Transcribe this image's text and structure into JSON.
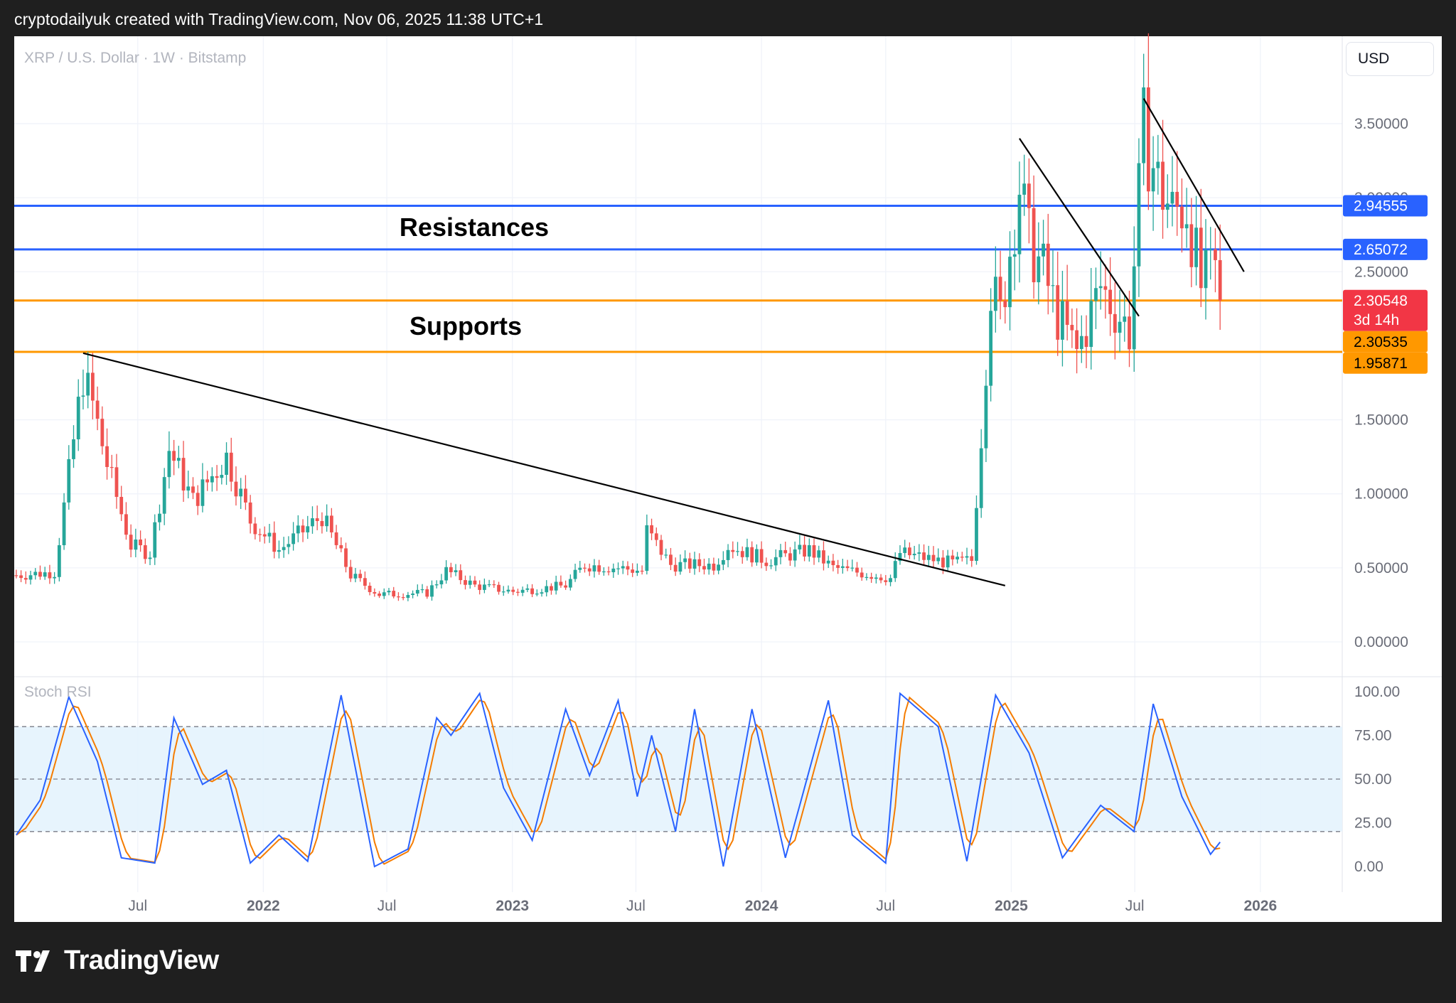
{
  "header": {
    "attribution": "cryptodailyuk created with TradingView.com, Nov 06, 2025 11:38 UTC+1"
  },
  "chart": {
    "symbol_label": "XRP / U.S. Dollar · 1W · Bitstamp",
    "currency_button": "USD"
  },
  "brand": {
    "name": "TradingView"
  },
  "colors": {
    "up": "#26a69a",
    "down": "#ef5350",
    "resistance": "#2962ff",
    "support": "#ff9800",
    "stoch_k": "#2962ff",
    "stoch_d": "#f57c00",
    "band_fill": "#e3f2fd",
    "last_price": "#f23645"
  },
  "chart_data": [
    {
      "type": "candlestick",
      "title": "XRP / U.S. Dollar · 1W · Bitstamp",
      "interval": "1W",
      "exchange": "Bitstamp",
      "ylim": [
        0,
        3.8
      ],
      "y_ticks": [
        "3.50000",
        "3.00000",
        "2.50000",
        "1.50000",
        "1.00000",
        "0.50000",
        "0.00000"
      ],
      "x_ticks": [
        "Jul",
        "2022",
        "Jul",
        "2023",
        "Jul",
        "2024",
        "Jul",
        "2025",
        "Jul",
        "2026"
      ],
      "price_path": [
        {
          "date": "2021-01-04",
          "price": 0.45
        },
        {
          "date": "2021-03-01",
          "price": 0.47
        },
        {
          "date": "2021-04-12",
          "price": 1.8
        },
        {
          "date": "2021-04-26",
          "price": 1.6
        },
        {
          "date": "2021-05-17",
          "price": 1.2
        },
        {
          "date": "2021-06-21",
          "price": 0.65
        },
        {
          "date": "2021-07-19",
          "price": 0.6
        },
        {
          "date": "2021-08-16",
          "price": 1.3
        },
        {
          "date": "2021-09-20",
          "price": 0.95
        },
        {
          "date": "2021-11-08",
          "price": 1.25
        },
        {
          "date": "2021-12-13",
          "price": 0.82
        },
        {
          "date": "2022-01-24",
          "price": 0.62
        },
        {
          "date": "2022-03-28",
          "price": 0.85
        },
        {
          "date": "2022-05-09",
          "price": 0.45
        },
        {
          "date": "2022-06-20",
          "price": 0.32
        },
        {
          "date": "2022-08-29",
          "price": 0.33
        },
        {
          "date": "2022-09-26",
          "price": 0.48
        },
        {
          "date": "2022-11-07",
          "price": 0.38
        },
        {
          "date": "2023-01-02",
          "price": 0.34
        },
        {
          "date": "2023-03-20",
          "price": 0.38
        },
        {
          "date": "2023-04-17",
          "price": 0.52
        },
        {
          "date": "2023-06-05",
          "price": 0.5
        },
        {
          "date": "2023-07-10",
          "price": 0.48
        },
        {
          "date": "2023-07-17",
          "price": 0.75
        },
        {
          "date": "2023-08-21",
          "price": 0.52
        },
        {
          "date": "2023-10-23",
          "price": 0.52
        },
        {
          "date": "2023-11-13",
          "price": 0.65
        },
        {
          "date": "2024-01-08",
          "price": 0.55
        },
        {
          "date": "2024-03-11",
          "price": 0.62
        },
        {
          "date": "2024-04-15",
          "price": 0.5
        },
        {
          "date": "2024-07-08",
          "price": 0.43
        },
        {
          "date": "2024-07-22",
          "price": 0.6
        },
        {
          "date": "2024-10-07",
          "price": 0.53
        },
        {
          "date": "2024-11-04",
          "price": 0.55
        },
        {
          "date": "2024-11-18",
          "price": 1.4
        },
        {
          "date": "2024-12-02",
          "price": 2.4
        },
        {
          "date": "2024-12-16",
          "price": 2.2
        },
        {
          "date": "2025-01-13",
          "price": 3.1
        },
        {
          "date": "2025-01-27",
          "price": 2.7
        },
        {
          "date": "2025-02-17",
          "price": 2.5
        },
        {
          "date": "2025-03-10",
          "price": 2.2
        },
        {
          "date": "2025-04-07",
          "price": 1.95
        },
        {
          "date": "2025-05-12",
          "price": 2.4
        },
        {
          "date": "2025-06-23",
          "price": 2.1
        },
        {
          "date": "2025-07-14",
          "price": 3.45
        },
        {
          "date": "2025-08-04",
          "price": 3.1
        },
        {
          "date": "2025-08-25",
          "price": 2.9
        },
        {
          "date": "2025-09-15",
          "price": 2.95
        },
        {
          "date": "2025-10-06",
          "price": 2.4
        },
        {
          "date": "2025-10-27",
          "price": 2.5
        },
        {
          "date": "2025-11-03",
          "price": 2.305
        }
      ],
      "horizontal_levels": [
        {
          "group": "Resistances",
          "value": 2.94555,
          "label": "2.94555",
          "color": "#2962ff"
        },
        {
          "group": "Resistances",
          "value": 2.65072,
          "label": "2.65072",
          "color": "#2962ff"
        },
        {
          "group": "Supports",
          "value": 2.30535,
          "label": "2.30535",
          "color": "#ff9800"
        },
        {
          "group": "Supports",
          "value": 1.95871,
          "label": "1.95871",
          "color": "#ff9800"
        }
      ],
      "annotations": [
        {
          "text": "Resistances",
          "between": [
            2.94555,
            2.65072
          ]
        },
        {
          "text": "Supports",
          "between": [
            2.30535,
            1.95871
          ]
        }
      ],
      "trendlines": [
        {
          "from": {
            "date": "2021-04-12",
            "price": 1.95
          },
          "to": {
            "date": "2024-12-23",
            "price": 0.38
          }
        },
        {
          "from": {
            "date": "2025-01-13",
            "price": 3.4
          },
          "to": {
            "date": "2025-07-07",
            "price": 2.2
          }
        },
        {
          "from": {
            "date": "2025-07-14",
            "price": 3.67
          },
          "to": {
            "date": "2025-12-08",
            "price": 2.5
          }
        }
      ],
      "last_price": {
        "value": 2.30548,
        "label": "2.30548",
        "countdown": "3d 14h"
      }
    },
    {
      "type": "line",
      "title": "Stoch RSI",
      "ylim": [
        0,
        100
      ],
      "y_ticks": [
        "100.00",
        "75.00",
        "50.00",
        "25.00",
        "0.00"
      ],
      "band": [
        20,
        80
      ],
      "midline": 50,
      "k_series": [
        {
          "date": "2021-01-04",
          "value": 18
        },
        {
          "date": "2021-02-08",
          "value": 38
        },
        {
          "date": "2021-03-22",
          "value": 97
        },
        {
          "date": "2021-05-03",
          "value": 60
        },
        {
          "date": "2021-06-07",
          "value": 5
        },
        {
          "date": "2021-07-26",
          "value": 2
        },
        {
          "date": "2021-08-23",
          "value": 85
        },
        {
          "date": "2021-10-04",
          "value": 47
        },
        {
          "date": "2021-11-08",
          "value": 55
        },
        {
          "date": "2021-12-13",
          "value": 2
        },
        {
          "date": "2022-01-24",
          "value": 18
        },
        {
          "date": "2022-03-07",
          "value": 3
        },
        {
          "date": "2022-04-25",
          "value": 98
        },
        {
          "date": "2022-06-13",
          "value": 0
        },
        {
          "date": "2022-08-01",
          "value": 10
        },
        {
          "date": "2022-09-12",
          "value": 85
        },
        {
          "date": "2022-10-03",
          "value": 75
        },
        {
          "date": "2022-11-14",
          "value": 99
        },
        {
          "date": "2022-12-19",
          "value": 45
        },
        {
          "date": "2023-01-30",
          "value": 15
        },
        {
          "date": "2023-03-20",
          "value": 90
        },
        {
          "date": "2023-04-24",
          "value": 52
        },
        {
          "date": "2023-06-05",
          "value": 95
        },
        {
          "date": "2023-07-03",
          "value": 40
        },
        {
          "date": "2023-07-24",
          "value": 75
        },
        {
          "date": "2023-08-28",
          "value": 20
        },
        {
          "date": "2023-09-25",
          "value": 90
        },
        {
          "date": "2023-11-06",
          "value": 0
        },
        {
          "date": "2023-12-18",
          "value": 90
        },
        {
          "date": "2024-02-05",
          "value": 5
        },
        {
          "date": "2024-04-08",
          "value": 95
        },
        {
          "date": "2024-05-13",
          "value": 18
        },
        {
          "date": "2024-07-01",
          "value": 2
        },
        {
          "date": "2024-07-22",
          "value": 99
        },
        {
          "date": "2024-09-16",
          "value": 80
        },
        {
          "date": "2024-10-28",
          "value": 3
        },
        {
          "date": "2024-12-09",
          "value": 98
        },
        {
          "date": "2025-01-27",
          "value": 65
        },
        {
          "date": "2025-03-17",
          "value": 5
        },
        {
          "date": "2025-05-12",
          "value": 35
        },
        {
          "date": "2025-06-30",
          "value": 20
        },
        {
          "date": "2025-07-28",
          "value": 93
        },
        {
          "date": "2025-09-08",
          "value": 40
        },
        {
          "date": "2025-10-20",
          "value": 7
        },
        {
          "date": "2025-11-03",
          "value": 14
        }
      ]
    }
  ]
}
